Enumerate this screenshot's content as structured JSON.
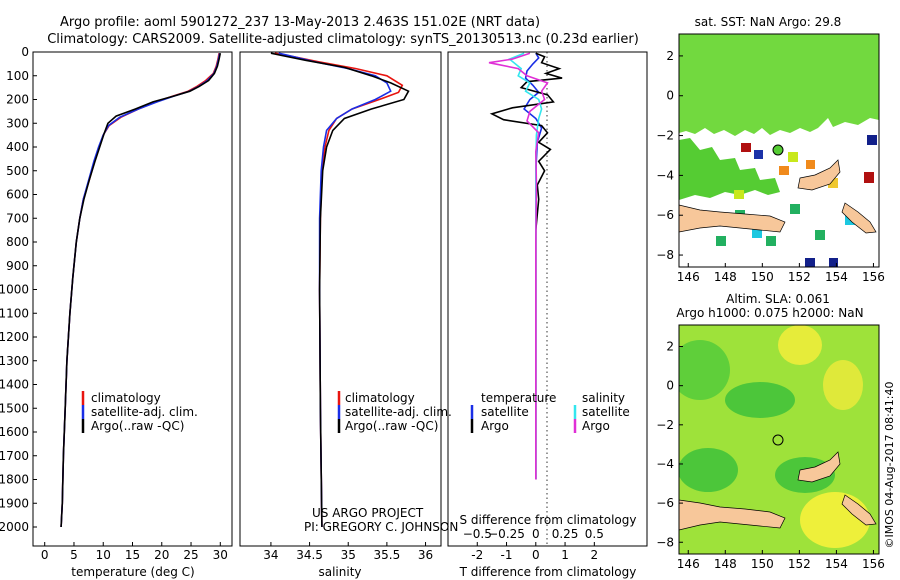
{
  "header": {
    "title_line1": "Argo profile: aoml 5901272_237 13-May-2013 2.463S 151.02E (NRT data)",
    "title_line2": "Climatology: CARS2009. Satellite-adjusted climatology: synTS_20130513.nc (0.23d earlier)"
  },
  "colors": {
    "climatology": "#e8140f",
    "satellite": "#1a2ee6",
    "argo": "#000000",
    "salinity_sat": "#33e6ee",
    "salinity_argo": "#e02fd6",
    "land": "#f7c79a"
  },
  "chart_data": [
    {
      "type": "line",
      "name": "temperature-profile",
      "xlabel": "temperature (deg C)",
      "xlim": [
        -2,
        32
      ],
      "xticks": [
        0,
        5,
        10,
        15,
        20,
        25,
        30
      ],
      "ylim": [
        0,
        2080
      ],
      "yticks": [
        0,
        100,
        200,
        300,
        400,
        500,
        600,
        700,
        800,
        900,
        1000,
        1100,
        1200,
        1300,
        1400,
        1500,
        1600,
        1700,
        1800,
        1900,
        2000
      ],
      "legend": [
        "climatology",
        "satellite-adj. clim.",
        "Argo(..raw -QC)"
      ],
      "series": [
        {
          "name": "climatology",
          "color": "#e8140f",
          "points": [
            [
              29.8,
              5
            ],
            [
              29.6,
              30
            ],
            [
              29.3,
              60
            ],
            [
              28.8,
              90
            ],
            [
              27.5,
              120
            ],
            [
              26,
              145
            ],
            [
              24.5,
              165
            ],
            [
              22,
              185
            ],
            [
              19,
              210
            ],
            [
              16,
              240
            ],
            [
              13,
              275
            ],
            [
              11,
              310
            ],
            [
              10,
              350
            ],
            [
              9.3,
              400
            ],
            [
              8.5,
              460
            ],
            [
              7.6,
              540
            ],
            [
              6.6,
              620
            ],
            [
              6,
              700
            ],
            [
              5.4,
              800
            ],
            [
              4.8,
              950
            ],
            [
              4.3,
              1100
            ],
            [
              3.8,
              1300
            ],
            [
              3.5,
              1500
            ],
            [
              3.2,
              1700
            ],
            [
              3,
              1900
            ],
            [
              2.8,
              2000
            ]
          ]
        },
        {
          "name": "satellite",
          "color": "#1a2ee6",
          "points": [
            [
              29.9,
              5
            ],
            [
              29.7,
              30
            ],
            [
              29.4,
              60
            ],
            [
              28.9,
              90
            ],
            [
              27.8,
              120
            ],
            [
              26.3,
              145
            ],
            [
              24.7,
              165
            ],
            [
              22.2,
              185
            ],
            [
              19.2,
              210
            ],
            [
              16,
              240
            ],
            [
              12.8,
              275
            ],
            [
              10.9,
              310
            ],
            [
              10,
              350
            ],
            [
              9.2,
              400
            ],
            [
              8.4,
              460
            ],
            [
              7.5,
              540
            ],
            [
              6.6,
              620
            ],
            [
              6,
              700
            ],
            [
              5.4,
              800
            ],
            [
              4.8,
              950
            ],
            [
              4.3,
              1100
            ],
            [
              3.8,
              1300
            ],
            [
              3.5,
              1500
            ],
            [
              3.2,
              1700
            ],
            [
              3,
              1900
            ],
            [
              2.8,
              2000
            ]
          ]
        },
        {
          "name": "argo",
          "color": "#000000",
          "points": [
            [
              30,
              5
            ],
            [
              29.8,
              30
            ],
            [
              29.5,
              60
            ],
            [
              29,
              90
            ],
            [
              28,
              120
            ],
            [
              26.4,
              145
            ],
            [
              24.8,
              165
            ],
            [
              22.2,
              185
            ],
            [
              18.5,
              210
            ],
            [
              15.5,
              240
            ],
            [
              12.2,
              270
            ],
            [
              10.8,
              300
            ],
            [
              10.2,
              340
            ],
            [
              9.4,
              400
            ],
            [
              8.6,
              460
            ],
            [
              7.6,
              540
            ],
            [
              6.7,
              620
            ],
            [
              6,
              700
            ],
            [
              5.4,
              800
            ],
            [
              4.8,
              950
            ],
            [
              4.3,
              1100
            ],
            [
              3.8,
              1300
            ],
            [
              3.5,
              1500
            ],
            [
              3.2,
              1700
            ],
            [
              3,
              1900
            ],
            [
              2.8,
              2000
            ]
          ]
        }
      ]
    },
    {
      "type": "line",
      "name": "salinity-profile",
      "xlabel": "salinity",
      "xlim": [
        33.6,
        36.2
      ],
      "xticks": [
        34,
        34.5,
        35,
        35.5,
        36
      ],
      "ylim": [
        0,
        2080
      ],
      "legend": [
        "climatology",
        "satellite-adj. clim.",
        "Argo(..raw -QC)"
      ],
      "annotation": [
        "US ARGO PROJECT",
        "PI: GREGORY C. JOHNSON"
      ],
      "series": [
        {
          "name": "climatology",
          "color": "#e8140f",
          "points": [
            [
              34.05,
              5
            ],
            [
              34.3,
              20
            ],
            [
              34.6,
              40
            ],
            [
              35.1,
              70
            ],
            [
              35.5,
              100
            ],
            [
              35.7,
              140
            ],
            [
              35.65,
              170
            ],
            [
              35.4,
              200
            ],
            [
              35.05,
              240
            ],
            [
              34.85,
              280
            ],
            [
              34.75,
              330
            ],
            [
              34.7,
              400
            ],
            [
              34.66,
              500
            ],
            [
              34.64,
              700
            ],
            [
              34.63,
              1000
            ],
            [
              34.64,
              1500
            ],
            [
              34.66,
              2000
            ]
          ]
        },
        {
          "name": "satellite",
          "color": "#1a2ee6",
          "points": [
            [
              34.1,
              5
            ],
            [
              34.3,
              20
            ],
            [
              34.55,
              40
            ],
            [
              35.0,
              70
            ],
            [
              35.35,
              100
            ],
            [
              35.5,
              130
            ],
            [
              35.55,
              165
            ],
            [
              35.35,
              200
            ],
            [
              35.05,
              240
            ],
            [
              34.85,
              280
            ],
            [
              34.72,
              330
            ],
            [
              34.68,
              400
            ],
            [
              34.65,
              500
            ],
            [
              34.63,
              700
            ],
            [
              34.63,
              1000
            ],
            [
              34.64,
              1500
            ],
            [
              34.66,
              2000
            ]
          ]
        },
        {
          "name": "argo",
          "color": "#000000",
          "points": [
            [
              34.0,
              5
            ],
            [
              34.15,
              15
            ],
            [
              34.45,
              35
            ],
            [
              34.95,
              65
            ],
            [
              35.3,
              100
            ],
            [
              35.55,
              130
            ],
            [
              35.78,
              165
            ],
            [
              35.72,
              200
            ],
            [
              35.3,
              240
            ],
            [
              34.95,
              280
            ],
            [
              34.8,
              330
            ],
            [
              34.72,
              400
            ],
            [
              34.67,
              500
            ],
            [
              34.64,
              700
            ],
            [
              34.63,
              1000
            ],
            [
              34.64,
              1500
            ],
            [
              34.66,
              2000
            ]
          ]
        }
      ]
    },
    {
      "type": "line",
      "name": "difference-profile",
      "xlabel_top": "S difference from climatology",
      "xlabel_bottom": "T difference from climatology",
      "x_t_lim": [
        -3,
        3.8
      ],
      "x_t_ticks": [
        -2,
        -1,
        0,
        1,
        2
      ],
      "x_s_ticks": [
        -0.5,
        -0.25,
        0,
        0.25,
        0.5
      ],
      "x_s_per_t": 4,
      "ylim": [
        0,
        2080
      ],
      "legend_t_title": "temperature",
      "legend_s_title": "salinity",
      "legend_t": [
        "satellite",
        "Argo"
      ],
      "legend_s": [
        "satellite",
        "Argo"
      ],
      "series": [
        {
          "name": "T satellite",
          "color": "#1a2ee6",
          "points": [
            [
              0,
              5
            ],
            [
              0.1,
              25
            ],
            [
              -0.1,
              50
            ],
            [
              -0.3,
              80
            ],
            [
              -0.35,
              110
            ],
            [
              -0.1,
              140
            ],
            [
              0.1,
              170
            ],
            [
              -0.2,
              200
            ],
            [
              -0.4,
              240
            ],
            [
              0,
              280
            ],
            [
              0.2,
              320
            ],
            [
              0.05,
              380
            ],
            [
              0,
              500
            ],
            [
              0,
              800
            ],
            [
              0,
              1200
            ],
            [
              0,
              1800
            ]
          ]
        },
        {
          "name": "T argo",
          "color": "#000000",
          "points": [
            [
              0,
              5
            ],
            [
              0.3,
              20
            ],
            [
              0.2,
              45
            ],
            [
              0.8,
              70
            ],
            [
              0.35,
              90
            ],
            [
              0.9,
              110
            ],
            [
              -0.3,
              125
            ],
            [
              -0.5,
              150
            ],
            [
              0.4,
              180
            ],
            [
              0.6,
              210
            ],
            [
              -0.8,
              235
            ],
            [
              -1.5,
              260
            ],
            [
              -1.1,
              285
            ],
            [
              0.2,
              310
            ],
            [
              0.4,
              340
            ],
            [
              0.1,
              380
            ],
            [
              0.5,
              410
            ],
            [
              0.1,
              460
            ],
            [
              0.3,
              500
            ],
            [
              0.05,
              560
            ],
            [
              0.1,
              620
            ],
            [
              0,
              750
            ],
            [
              0,
              1000
            ],
            [
              0,
              1800
            ]
          ]
        },
        {
          "name": "S satellite",
          "color": "#33e6ee",
          "points": [
            [
              -0.4,
              5
            ],
            [
              -0.9,
              30
            ],
            [
              -0.5,
              70
            ],
            [
              -0.6,
              100
            ],
            [
              -0.2,
              130
            ],
            [
              -0.35,
              165
            ],
            [
              0.1,
              200
            ],
            [
              0.2,
              240
            ],
            [
              0.1,
              280
            ],
            [
              0.02,
              350
            ],
            [
              0,
              500
            ],
            [
              0,
              1000
            ],
            [
              0,
              1800
            ]
          ]
        },
        {
          "name": "S argo",
          "color": "#e02fd6",
          "points": [
            [
              -0.2,
              5
            ],
            [
              -0.8,
              30
            ],
            [
              -1.6,
              45
            ],
            [
              -0.6,
              70
            ],
            [
              -0.3,
              100
            ],
            [
              0.4,
              130
            ],
            [
              0.2,
              165
            ],
            [
              0.3,
              200
            ],
            [
              -0.2,
              250
            ],
            [
              -0.3,
              290
            ],
            [
              0.1,
              340
            ],
            [
              0,
              420
            ],
            [
              0.02,
              550
            ],
            [
              0,
              800
            ],
            [
              0,
              1800
            ]
          ]
        }
      ]
    },
    {
      "type": "heatmap",
      "name": "sst-map",
      "title": "sat. SST: NaN Argo: 29.8",
      "xticks": [
        146,
        148,
        150,
        152,
        154,
        156
      ],
      "yticks": [
        2,
        0,
        -2,
        -4,
        -6,
        -8
      ],
      "xlim": [
        145.5,
        156.3
      ],
      "ylim": [
        -8.6,
        3.1
      ]
    },
    {
      "type": "heatmap",
      "name": "sla-map",
      "title_line1": "Altim. SLA: 0.061",
      "title_line2": "Argo h1000: 0.075 h2000: NaN",
      "xticks": [
        146,
        148,
        150,
        152,
        154,
        156
      ],
      "yticks": [
        2,
        0,
        -2,
        -4,
        -6,
        -8
      ],
      "xlim": [
        145.5,
        156.3
      ],
      "ylim": [
        -8.6,
        3.1
      ]
    }
  ],
  "footer": {
    "imos_stamp": "©IMOS 04-Aug-2017 08:41:40"
  }
}
